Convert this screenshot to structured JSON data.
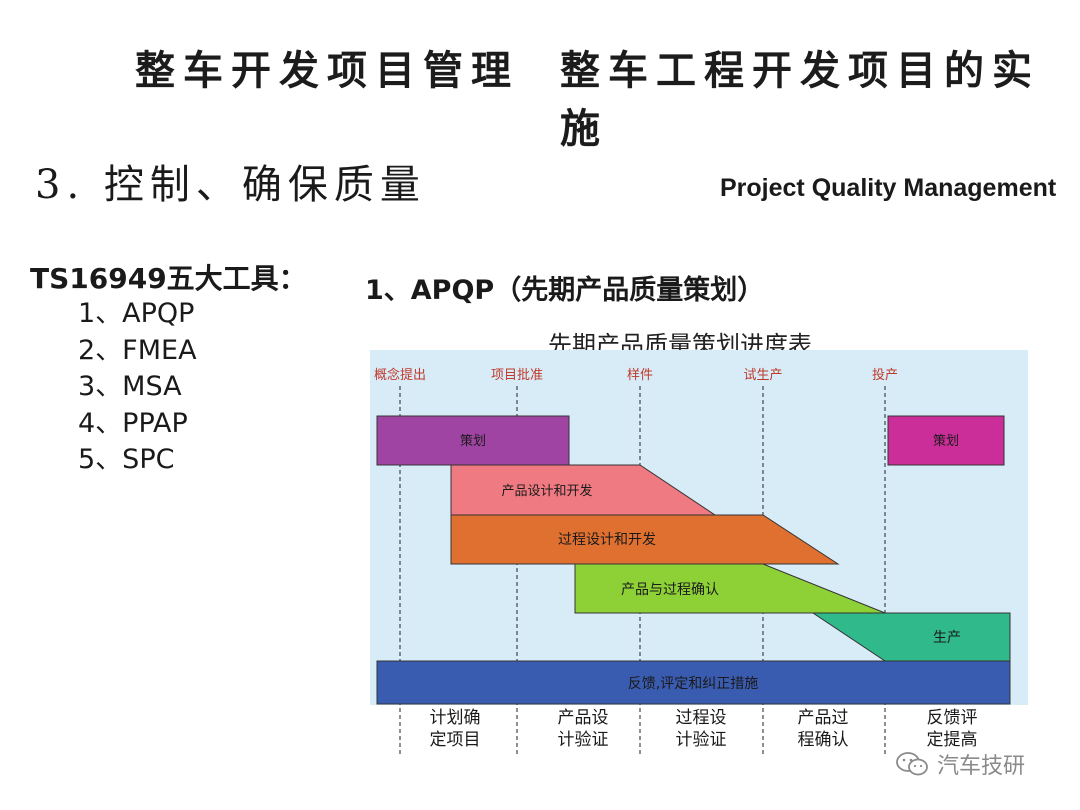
{
  "header": {
    "left": "整车开发项目管理",
    "right": "整车工程开发项目的实施"
  },
  "section": {
    "title": "3. 控制、确保质量",
    "subtitle_en": "Project Quality Management"
  },
  "tools": {
    "title": "TS16949五大工具：",
    "items": [
      "1、APQP",
      "2、FMEA",
      "3、MSA",
      "4、PPAP",
      "5、SPC"
    ]
  },
  "apqp": {
    "title": "1、APQP（先期产品质量策划）",
    "chart_title": "先期产品质量策划进度表"
  },
  "chart_data": {
    "type": "gantt",
    "milestones": [
      "概念提出",
      "项目批准",
      "样件",
      "试生产",
      "投产"
    ],
    "bars": [
      {
        "label": "策划",
        "color": "#a044a3"
      },
      {
        "label": "产品设计和开发",
        "color": "#f07a82"
      },
      {
        "label": "过程设计和开发",
        "color": "#e07030"
      },
      {
        "label": "产品与过程确认",
        "color": "#8ed136"
      },
      {
        "label": "生产",
        "color": "#30b98a"
      },
      {
        "label": "反馈,评定和纠正措施",
        "color": "#3a5cb0"
      },
      {
        "label": "策划",
        "color": "#cc2e99"
      }
    ],
    "phases": [
      [
        "计划确",
        "定项目"
      ],
      [
        "产品设",
        "计验证"
      ],
      [
        "过程设",
        "计验证"
      ],
      [
        "产品过",
        "程确认"
      ],
      [
        "反馈评",
        "定提高"
      ]
    ]
  },
  "watermark": {
    "text": "汽车技研",
    "icon": "wechat-icon"
  }
}
